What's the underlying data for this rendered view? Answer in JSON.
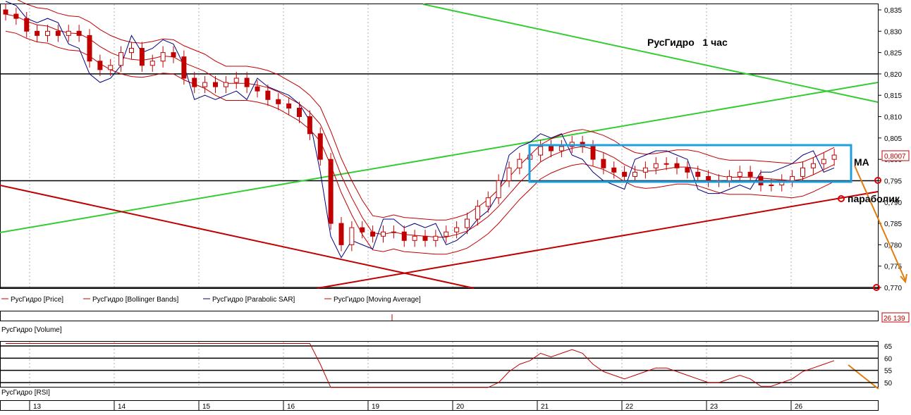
{
  "chart_data": {
    "type": "candlestick",
    "title": "РусГидро   1 час",
    "price_panel": {
      "ylim": [
        0.77,
        0.836
      ],
      "y_ticks": [
        "0,835",
        "0,830",
        "0,825",
        "0,820",
        "0,815",
        "0,810",
        "0,805",
        "0,800",
        "0,795",
        "0,790",
        "0,785",
        "0,780",
        "0,775",
        "0,770"
      ],
      "current_price_label": "0,8007",
      "horizontal_levels": [
        0.82,
        0.795,
        0.77
      ],
      "candles_close": [
        0.834,
        0.833,
        0.83,
        0.829,
        0.83,
        0.829,
        0.83,
        0.829,
        0.823,
        0.821,
        0.822,
        0.825,
        0.826,
        0.822,
        0.823,
        0.825,
        0.824,
        0.819,
        0.817,
        0.818,
        0.817,
        0.818,
        0.819,
        0.817,
        0.816,
        0.814,
        0.813,
        0.812,
        0.81,
        0.806,
        0.8,
        0.785,
        0.78,
        0.784,
        0.783,
        0.782,
        0.783,
        0.783,
        0.781,
        0.782,
        0.781,
        0.782,
        0.783,
        0.784,
        0.786,
        0.789,
        0.791,
        0.795,
        0.798,
        0.8,
        0.801,
        0.803,
        0.802,
        0.803,
        0.804,
        0.803,
        0.8,
        0.798,
        0.797,
        0.796,
        0.797,
        0.798,
        0.799,
        0.799,
        0.798,
        0.797,
        0.796,
        0.795,
        0.795,
        0.796,
        0.797,
        0.796,
        0.794,
        0.794,
        0.795,
        0.796,
        0.798,
        0.799,
        0.8,
        0.801
      ],
      "legend": [
        {
          "label": "РусГидро [Price]",
          "color": "#c00000"
        },
        {
          "label": "РусГидро [Bollinger Bands]",
          "color": "#c00000"
        },
        {
          "label": "РусГидро [Parabolic SAR]",
          "color": "#000080"
        },
        {
          "label": "РусГидро [Moving Average]",
          "color": "#c00000"
        }
      ]
    },
    "volume_panel": {
      "title": "РусГидро [Volume]",
      "last_value": "26 139"
    },
    "rsi_panel": {
      "title": "РусГидро [RSI]",
      "y_ticks": [
        "65",
        "60",
        "55",
        "50"
      ],
      "levels": [
        65,
        60,
        55,
        50
      ]
    },
    "x_labels": [
      "13",
      "14",
      "15",
      "16",
      "19",
      "20",
      "21",
      "22",
      "23",
      "26"
    ],
    "annotations": {
      "ma_label": "МА",
      "sar_label": "параболик",
      "range_box_top": 0.804,
      "range_box_bottom": 0.795
    },
    "colors": {
      "candle_red": "#c00000",
      "trend_green": "#33cc33",
      "trend_red": "#c00000",
      "sar_blue": "#000080",
      "box_blue": "#1fa0dc",
      "forecast_orange": "#e07c10"
    }
  }
}
